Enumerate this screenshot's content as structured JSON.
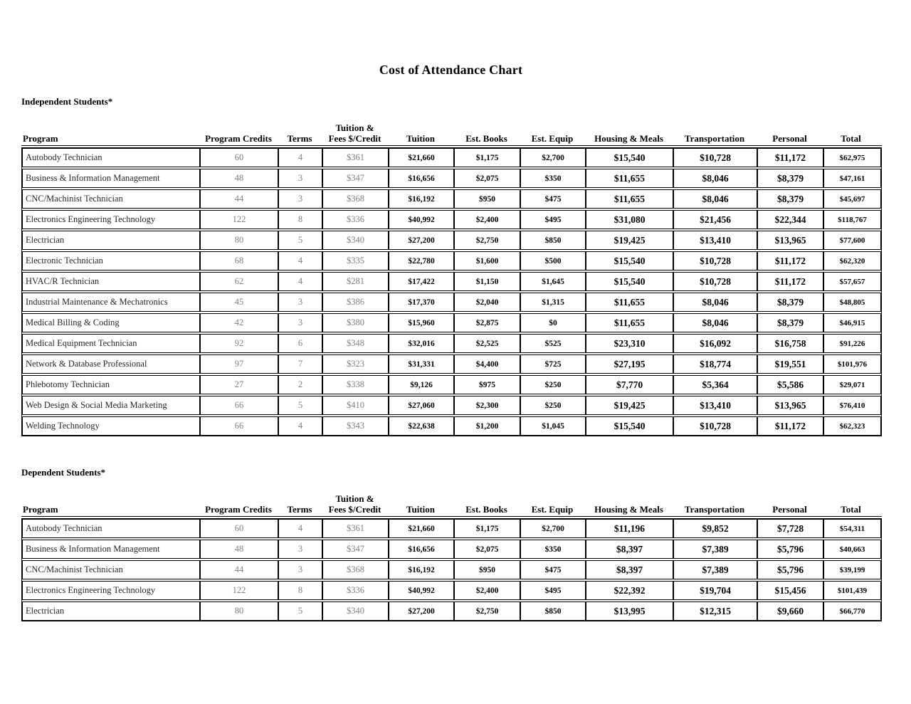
{
  "page": {
    "title": "Cost of Attendance Chart"
  },
  "columns": [
    "Program",
    "Program Credits",
    "Terms",
    "Tuition &\nFees $/Credit",
    "Tuition",
    "Est. Books",
    "Est. Equip",
    "Housing & Meals",
    "Transportation",
    "Personal",
    "Total"
  ],
  "sections": [
    {
      "heading": "Independent Students*",
      "rows": [
        [
          "Autobody Technician",
          "60",
          "4",
          "$361",
          "$21,660",
          "$1,175",
          "$2,700",
          "$15,540",
          "$10,728",
          "$11,172",
          "$62,975"
        ],
        [
          "Business & Information Management",
          "48",
          "3",
          "$347",
          "$16,656",
          "$2,075",
          "$350",
          "$11,655",
          "$8,046",
          "$8,379",
          "$47,161"
        ],
        [
          "CNC/Machinist Technician",
          "44",
          "3",
          "$368",
          "$16,192",
          "$950",
          "$475",
          "$11,655",
          "$8,046",
          "$8,379",
          "$45,697"
        ],
        [
          "Electronics Engineering Technology",
          "122",
          "8",
          "$336",
          "$40,992",
          "$2,400",
          "$495",
          "$31,080",
          "$21,456",
          "$22,344",
          "$118,767"
        ],
        [
          "Electrician",
          "80",
          "5",
          "$340",
          "$27,200",
          "$2,750",
          "$850",
          "$19,425",
          "$13,410",
          "$13,965",
          "$77,600"
        ],
        [
          "Electronic Technician",
          "68",
          "4",
          "$335",
          "$22,780",
          "$1,600",
          "$500",
          "$15,540",
          "$10,728",
          "$11,172",
          "$62,320"
        ],
        [
          "HVAC/R Technician",
          "62",
          "4",
          "$281",
          "$17,422",
          "$1,150",
          "$1,645",
          "$15,540",
          "$10,728",
          "$11,172",
          "$57,657"
        ],
        [
          "Industrial Maintenance & Mechatronics",
          "45",
          "3",
          "$386",
          "$17,370",
          "$2,040",
          "$1,315",
          "$11,655",
          "$8,046",
          "$8,379",
          "$48,805"
        ],
        [
          "Medical Billing & Coding",
          "42",
          "3",
          "$380",
          "$15,960",
          "$2,875",
          "$0",
          "$11,655",
          "$8,046",
          "$8,379",
          "$46,915"
        ],
        [
          "Medical Equipment Technician",
          "92",
          "6",
          "$348",
          "$32,016",
          "$2,525",
          "$525",
          "$23,310",
          "$16,092",
          "$16,758",
          "$91,226"
        ],
        [
          "Network & Database Professional",
          "97",
          "7",
          "$323",
          "$31,331",
          "$4,400",
          "$725",
          "$27,195",
          "$18,774",
          "$19,551",
          "$101,976"
        ],
        [
          "Phlebotomy Technician",
          "27",
          "2",
          "$338",
          "$9,126",
          "$975",
          "$250",
          "$7,770",
          "$5,364",
          "$5,586",
          "$29,071"
        ],
        [
          "Web Design & Social Media Marketing",
          "66",
          "5",
          "$410",
          "$27,060",
          "$2,300",
          "$250",
          "$19,425",
          "$13,410",
          "$13,965",
          "$76,410"
        ],
        [
          "Welding Technology",
          "66",
          "4",
          "$343",
          "$22,638",
          "$1,200",
          "$1,045",
          "$15,540",
          "$10,728",
          "$11,172",
          "$62,323"
        ]
      ]
    },
    {
      "heading": "Dependent Students*",
      "rows": [
        [
          "Autobody Technician",
          "60",
          "4",
          "$361",
          "$21,660",
          "$1,175",
          "$2,700",
          "$11,196",
          "$9,852",
          "$7,728",
          "$54,311"
        ],
        [
          "Business & Information Management",
          "48",
          "3",
          "$347",
          "$16,656",
          "$2,075",
          "$350",
          "$8,397",
          "$7,389",
          "$5,796",
          "$40,663"
        ],
        [
          "CNC/Machinist Technician",
          "44",
          "3",
          "$368",
          "$16,192",
          "$950",
          "$475",
          "$8,397",
          "$7,389",
          "$5,796",
          "$39,199"
        ],
        [
          "Electronics Engineering Technology",
          "122",
          "8",
          "$336",
          "$40,992",
          "$2,400",
          "$495",
          "$22,392",
          "$19,704",
          "$15,456",
          "$101,439"
        ],
        [
          "Electrician",
          "80",
          "5",
          "$340",
          "$27,200",
          "$2,750",
          "$850",
          "$13,995",
          "$12,315",
          "$9,660",
          "$66,770"
        ]
      ]
    }
  ]
}
